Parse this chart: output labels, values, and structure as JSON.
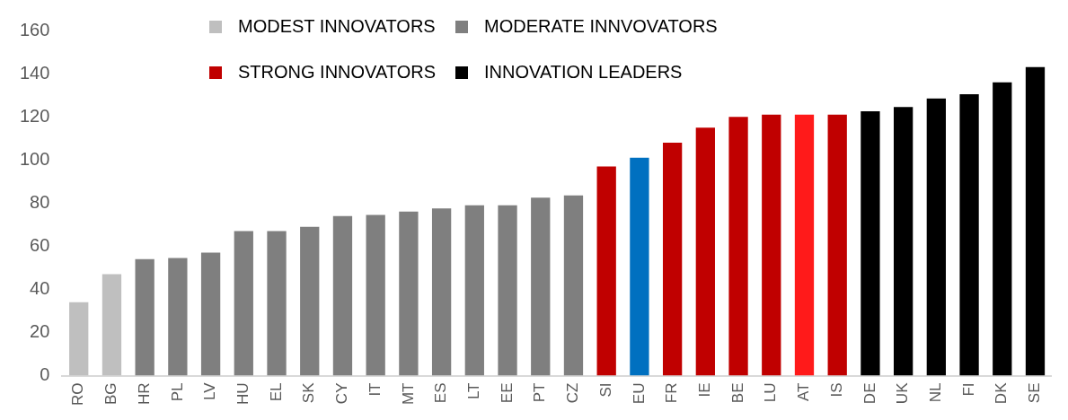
{
  "chart_data": {
    "type": "bar",
    "categories": [
      "RO",
      "BG",
      "HR",
      "PL",
      "LV",
      "HU",
      "EL",
      "SK",
      "CY",
      "IT",
      "MT",
      "ES",
      "LT",
      "EE",
      "PT",
      "CZ",
      "SI",
      "EU",
      "FR",
      "IE",
      "BE",
      "LU",
      "AT",
      "IS",
      "DE",
      "UK",
      "NL",
      "FI",
      "DK",
      "SE"
    ],
    "series": [
      {
        "name": "MODEST INNOVATORS",
        "color": "#bfbfbf",
        "values": [
          34,
          47,
          null,
          null,
          null,
          null,
          null,
          null,
          null,
          null,
          null,
          null,
          null,
          null,
          null,
          null,
          null,
          null,
          null,
          null,
          null,
          null,
          null,
          null,
          null,
          null,
          null,
          null,
          null,
          null
        ]
      },
      {
        "name": "MODERATE INNVOVATORS",
        "color": "#7f7f7f",
        "values": [
          null,
          null,
          54,
          54.5,
          57,
          67,
          67,
          69,
          74,
          74.5,
          76,
          77.5,
          79,
          79,
          82.5,
          83.5,
          null,
          null,
          null,
          null,
          null,
          null,
          null,
          null,
          null,
          null,
          null,
          null,
          null,
          null
        ]
      },
      {
        "name": "STRONG INNOVATORS",
        "color": "#c00000",
        "colors": [
          "#c00000",
          "#c00000",
          "#c00000",
          "#c00000",
          "#c00000",
          "#c00000",
          "#c00000",
          "#c00000",
          "#c00000",
          "#c00000",
          "#c00000",
          "#c00000",
          "#c00000",
          "#c00000",
          "#c00000",
          "#c00000",
          "#c00000",
          "#c00000",
          "#c00000",
          "#c00000",
          "#c00000",
          "#c00000",
          "#ff1a1a",
          "#c00000",
          "#c00000",
          "#c00000",
          "#c00000",
          "#c00000",
          "#c00000",
          "#c00000"
        ],
        "values": [
          null,
          null,
          null,
          null,
          null,
          null,
          null,
          null,
          null,
          null,
          null,
          null,
          null,
          null,
          null,
          null,
          97,
          null,
          108,
          115,
          120,
          121,
          121,
          121,
          null,
          null,
          null,
          null,
          null,
          null
        ]
      },
      {
        "color": "#0070c0",
        "values": [
          null,
          null,
          null,
          null,
          null,
          null,
          null,
          null,
          null,
          null,
          null,
          null,
          null,
          null,
          null,
          null,
          null,
          101,
          null,
          null,
          null,
          null,
          null,
          null,
          null,
          null,
          null,
          null,
          null,
          null
        ]
      },
      {
        "name": "INNOVATION LEADERS",
        "color": "#000000",
        "values": [
          null,
          null,
          null,
          null,
          null,
          null,
          null,
          null,
          null,
          null,
          null,
          null,
          null,
          null,
          null,
          null,
          null,
          null,
          null,
          null,
          null,
          null,
          null,
          null,
          122.5,
          124.5,
          128.5,
          130.5,
          136,
          143
        ]
      }
    ],
    "ylim": [
      0,
      160
    ],
    "yticks": [
      0,
      20,
      40,
      60,
      80,
      100,
      120,
      140,
      160
    ],
    "grid": false,
    "legend": "top"
  }
}
